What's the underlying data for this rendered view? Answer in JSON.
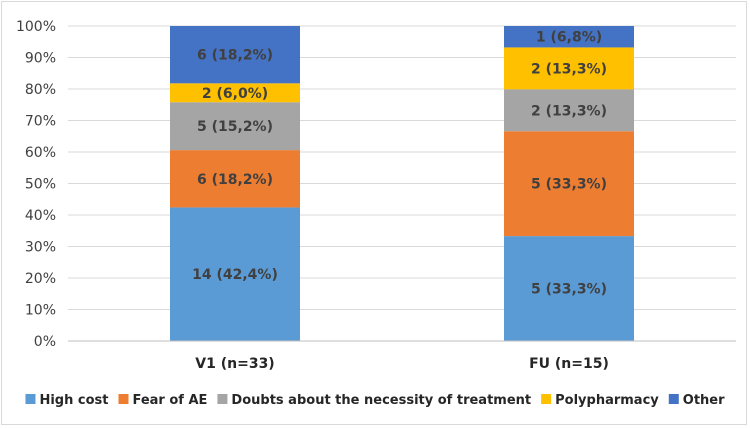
{
  "chart_data": {
    "type": "bar",
    "stacked": true,
    "normalized": true,
    "title": "",
    "xlabel": "",
    "ylabel": "",
    "ylim": [
      0,
      100
    ],
    "y_ticks": [
      "0%",
      "10%",
      "20%",
      "30%",
      "40%",
      "50%",
      "60%",
      "70%",
      "80%",
      "90%",
      "100%"
    ],
    "categories": [
      "V1 (n=33)",
      "FU (n=15)"
    ],
    "grid": true,
    "legend_position": "bottom",
    "series": [
      {
        "name": "High cost",
        "color": "#5b9bd5",
        "values": [
          42.4,
          33.3
        ],
        "labels": [
          "14 (42,4%)",
          "5 (33,3%)"
        ]
      },
      {
        "name": "Fear of AE",
        "color": "#ed7d31",
        "values": [
          18.2,
          33.3
        ],
        "labels": [
          "6 (18,2%)",
          "5 (33,3%)"
        ]
      },
      {
        "name": "Doubts about the necessity of treatment",
        "color": "#a5a5a5",
        "values": [
          15.2,
          13.3
        ],
        "labels": [
          "5 (15,2%)",
          "2 (13,3%)"
        ]
      },
      {
        "name": "Polypharmacy",
        "color": "#ffc000",
        "values": [
          6.0,
          13.3
        ],
        "labels": [
          "2 (6,0%)",
          "2 (13,3%)"
        ]
      },
      {
        "name": "Other",
        "color": "#4472c4",
        "values": [
          18.2,
          6.8
        ],
        "labels": [
          "6 (18,2%)",
          "1 (6,8%)"
        ]
      }
    ]
  }
}
